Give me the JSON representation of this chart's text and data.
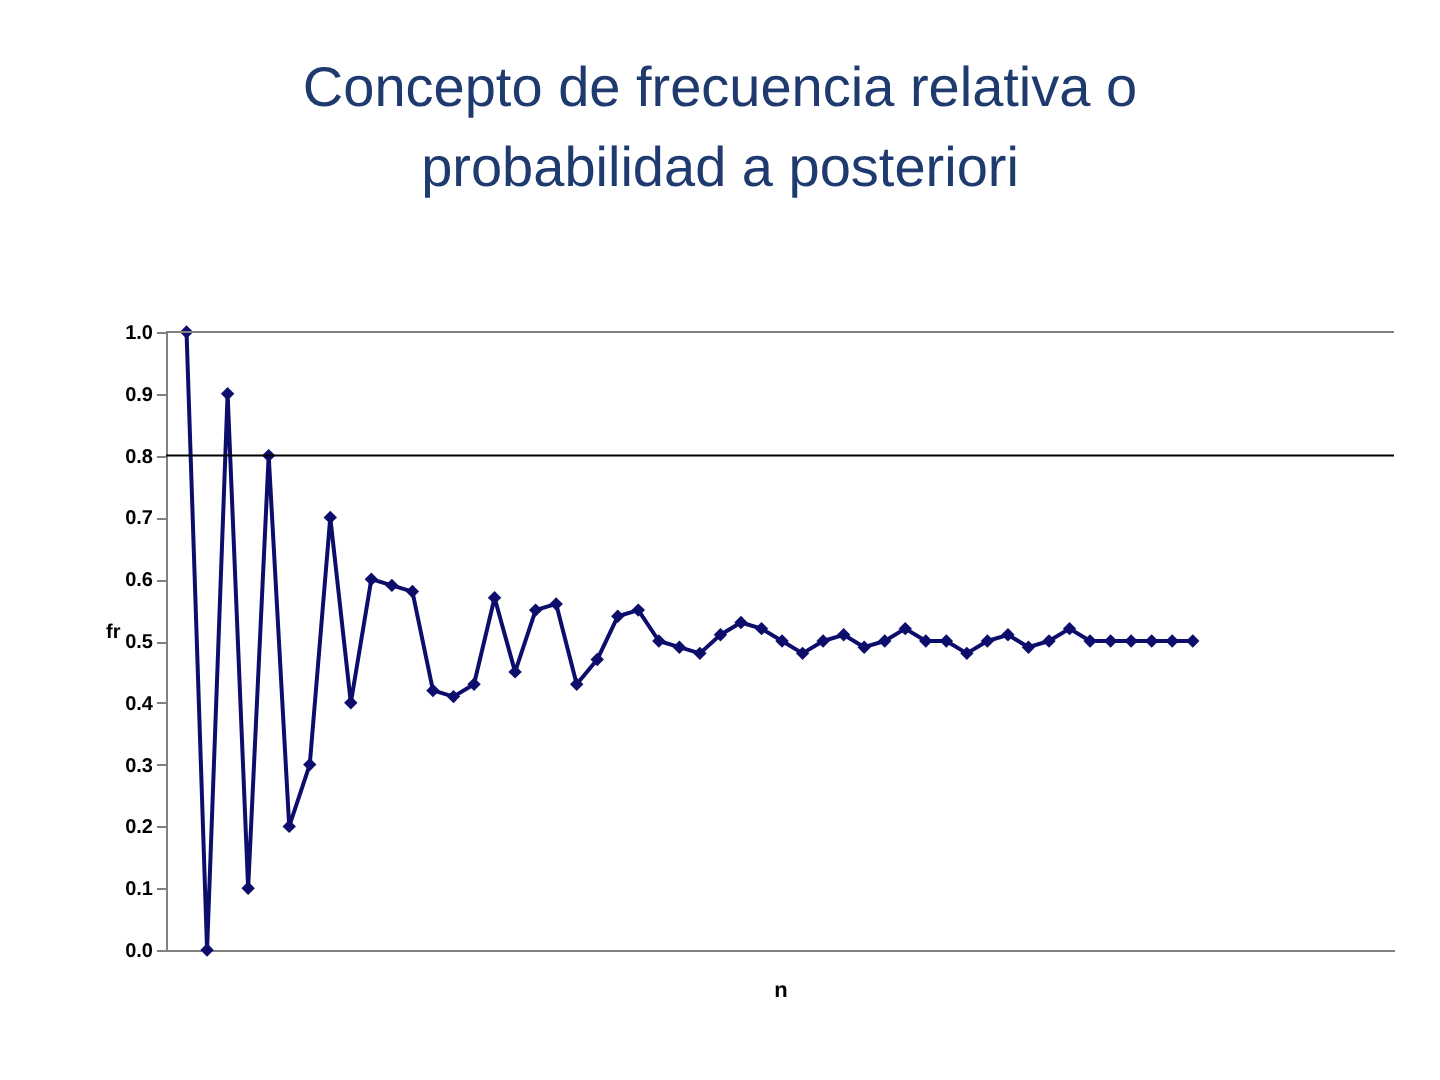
{
  "chart_data": {
    "type": "line",
    "title": "Concepto de frecuencia relativa o probabilidad a posteriori",
    "xlabel": "n",
    "ylabel": "fr",
    "categories": [
      null,
      null,
      null,
      null,
      null,
      null,
      null,
      null,
      null,
      null,
      null,
      null,
      null,
      null,
      null,
      null,
      null,
      null,
      null,
      null,
      null,
      null,
      null,
      null,
      null,
      null,
      null,
      null,
      null,
      null,
      null,
      null,
      null,
      null,
      null,
      null,
      null,
      null,
      null,
      null,
      null,
      null,
      null,
      null,
      null,
      null,
      null,
      null,
      null,
      null
    ],
    "series": [
      {
        "color": "#0d0d6b",
        "values": [
          1.0,
          0.0,
          0.9,
          0.1,
          0.8,
          0.2,
          0.3,
          0.7,
          0.4,
          0.6,
          0.59,
          0.58,
          0.42,
          0.41,
          0.43,
          0.57,
          0.45,
          0.55,
          0.56,
          0.43,
          0.47,
          0.54,
          0.55,
          0.5,
          0.49,
          0.48,
          0.51,
          0.53,
          0.52,
          0.5,
          0.48,
          0.5,
          0.51,
          0.49,
          0.5,
          0.52,
          0.5,
          0.5,
          0.48,
          0.5,
          0.51,
          0.49,
          0.5,
          0.52,
          0.5,
          0.5,
          0.5,
          0.5,
          0.5,
          0.5
        ]
      }
    ],
    "ylim": [
      0,
      1
    ],
    "yticks": [
      {
        "value": 0,
        "label": "0.0"
      },
      {
        "value": 0.1,
        "label": "0.1"
      },
      {
        "value": 0.2,
        "label": "0.2"
      },
      {
        "value": 0.3,
        "label": "0.3"
      },
      {
        "value": 0.4,
        "label": "0.4"
      },
      {
        "value": 0.5,
        "label": "0.5"
      },
      {
        "value": 0.6,
        "label": "0.6"
      },
      {
        "value": 0.7,
        "label": "0.7"
      },
      {
        "value": 0.8,
        "label": "0.8"
      },
      {
        "value": 0.9,
        "label": "0.9"
      },
      {
        "value": 1,
        "label": "1.0"
      }
    ],
    "ref_lines": [
      {
        "axis": "y",
        "value": 1,
        "color": "#808080"
      },
      {
        "axis": "y",
        "value": 0.8,
        "color": "#000000"
      }
    ],
    "marker": "diamond",
    "line_style": "solid"
  }
}
